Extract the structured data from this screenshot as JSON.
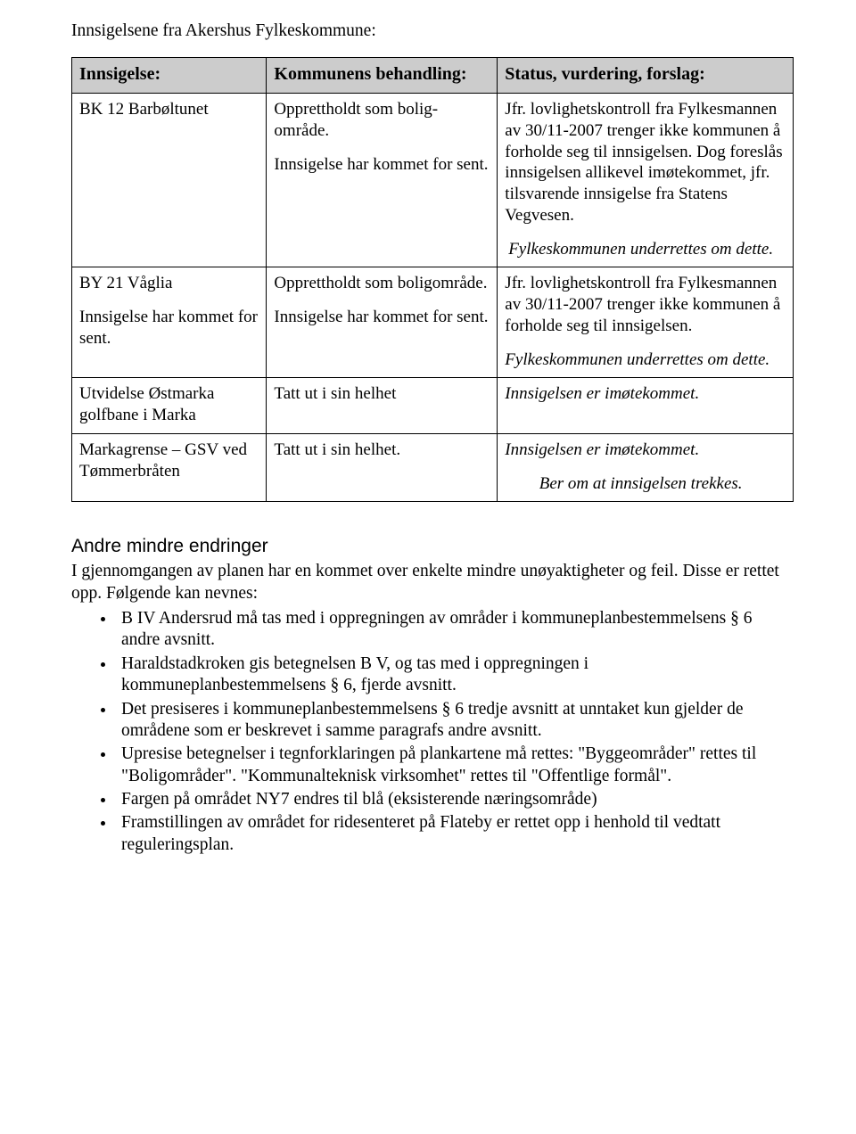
{
  "intro": "Innsigelsene fra Akershus Fylkeskommune:",
  "table": {
    "headers": [
      "Innsigelse:",
      "Kommunens behandling:",
      "Status, vurdering, forslag:"
    ],
    "rows": [
      {
        "col1": [
          "BK 12 Barbøltunet"
        ],
        "col2": [
          "Opprettholdt som bolig-område.",
          "Innsigelse har kommet for sent."
        ],
        "col3_text": "Jfr. lovlighetskontroll fra Fylkesmannen av 30/11-2007 trenger ikke kommunen å forholde seg til innsigelsen. Dog foreslås innsigelsen allikevel imøtekommet, jfr. tilsvarende innsigelse fra Statens Vegvesen.",
        "col3_italic_center": "Fylkeskommunen underrettes om dette."
      },
      {
        "col1": [
          "BY 21 Våglia",
          "Innsigelse har kommet for sent."
        ],
        "col2": [
          "Opprettholdt som boligområde.",
          "Innsigelse har kommet for sent."
        ],
        "col3_text": "Jfr. lovlighetskontroll fra Fylkesmannen av 30/11-2007 trenger ikke kommunen å forholde seg til innsigelsen.",
        "col3_italic": "Fylkeskommunen underrettes om dette."
      },
      {
        "col1": [
          "Utvidelse Østmarka golfbane i Marka"
        ],
        "col2": [
          "Tatt ut i sin helhet"
        ],
        "col3_italic": "Innsigelsen er imøtekommet."
      },
      {
        "col1": [
          "Markagrense – GSV ved Tømmerbråten"
        ],
        "col2": [
          "Tatt ut i sin helhet."
        ],
        "col3_italic": "Innsigelsen er imøtekommet.",
        "col3_italic_center": "Ber om at innsigelsen trekkes."
      }
    ]
  },
  "section": {
    "heading": "Andre mindre endringer",
    "lead": "I gjennomgangen av planen har en kommet over enkelte mindre unøyaktigheter og feil. Disse er rettet opp. Følgende kan nevnes:",
    "bullets": [
      "B IV Andersrud må tas med i oppregningen av områder i kommuneplanbestemmelsens § 6 andre avsnitt.",
      "Haraldstadkroken gis betegnelsen B V, og tas med i oppregningen i kommuneplanbestemmelsens § 6, fjerde avsnitt.",
      "Det presiseres i kommuneplanbestemmelsens § 6 tredje avsnitt at unntaket kun gjelder de områdene som er beskrevet i samme paragrafs andre avsnitt.",
      "Upresise betegnelser i tegnforklaringen på plankartene må rettes: \"Byggeområder\" rettes til \"Boligområder\". \"Kommunalteknisk virksomhet\" rettes til \"Offentlige formål\".",
      "Fargen på området NY7 endres til blå (eksisterende næringsområde)",
      "Framstillingen av området for ridesenteret på Flateby er rettet opp i henhold til vedtatt reguleringsplan."
    ]
  }
}
